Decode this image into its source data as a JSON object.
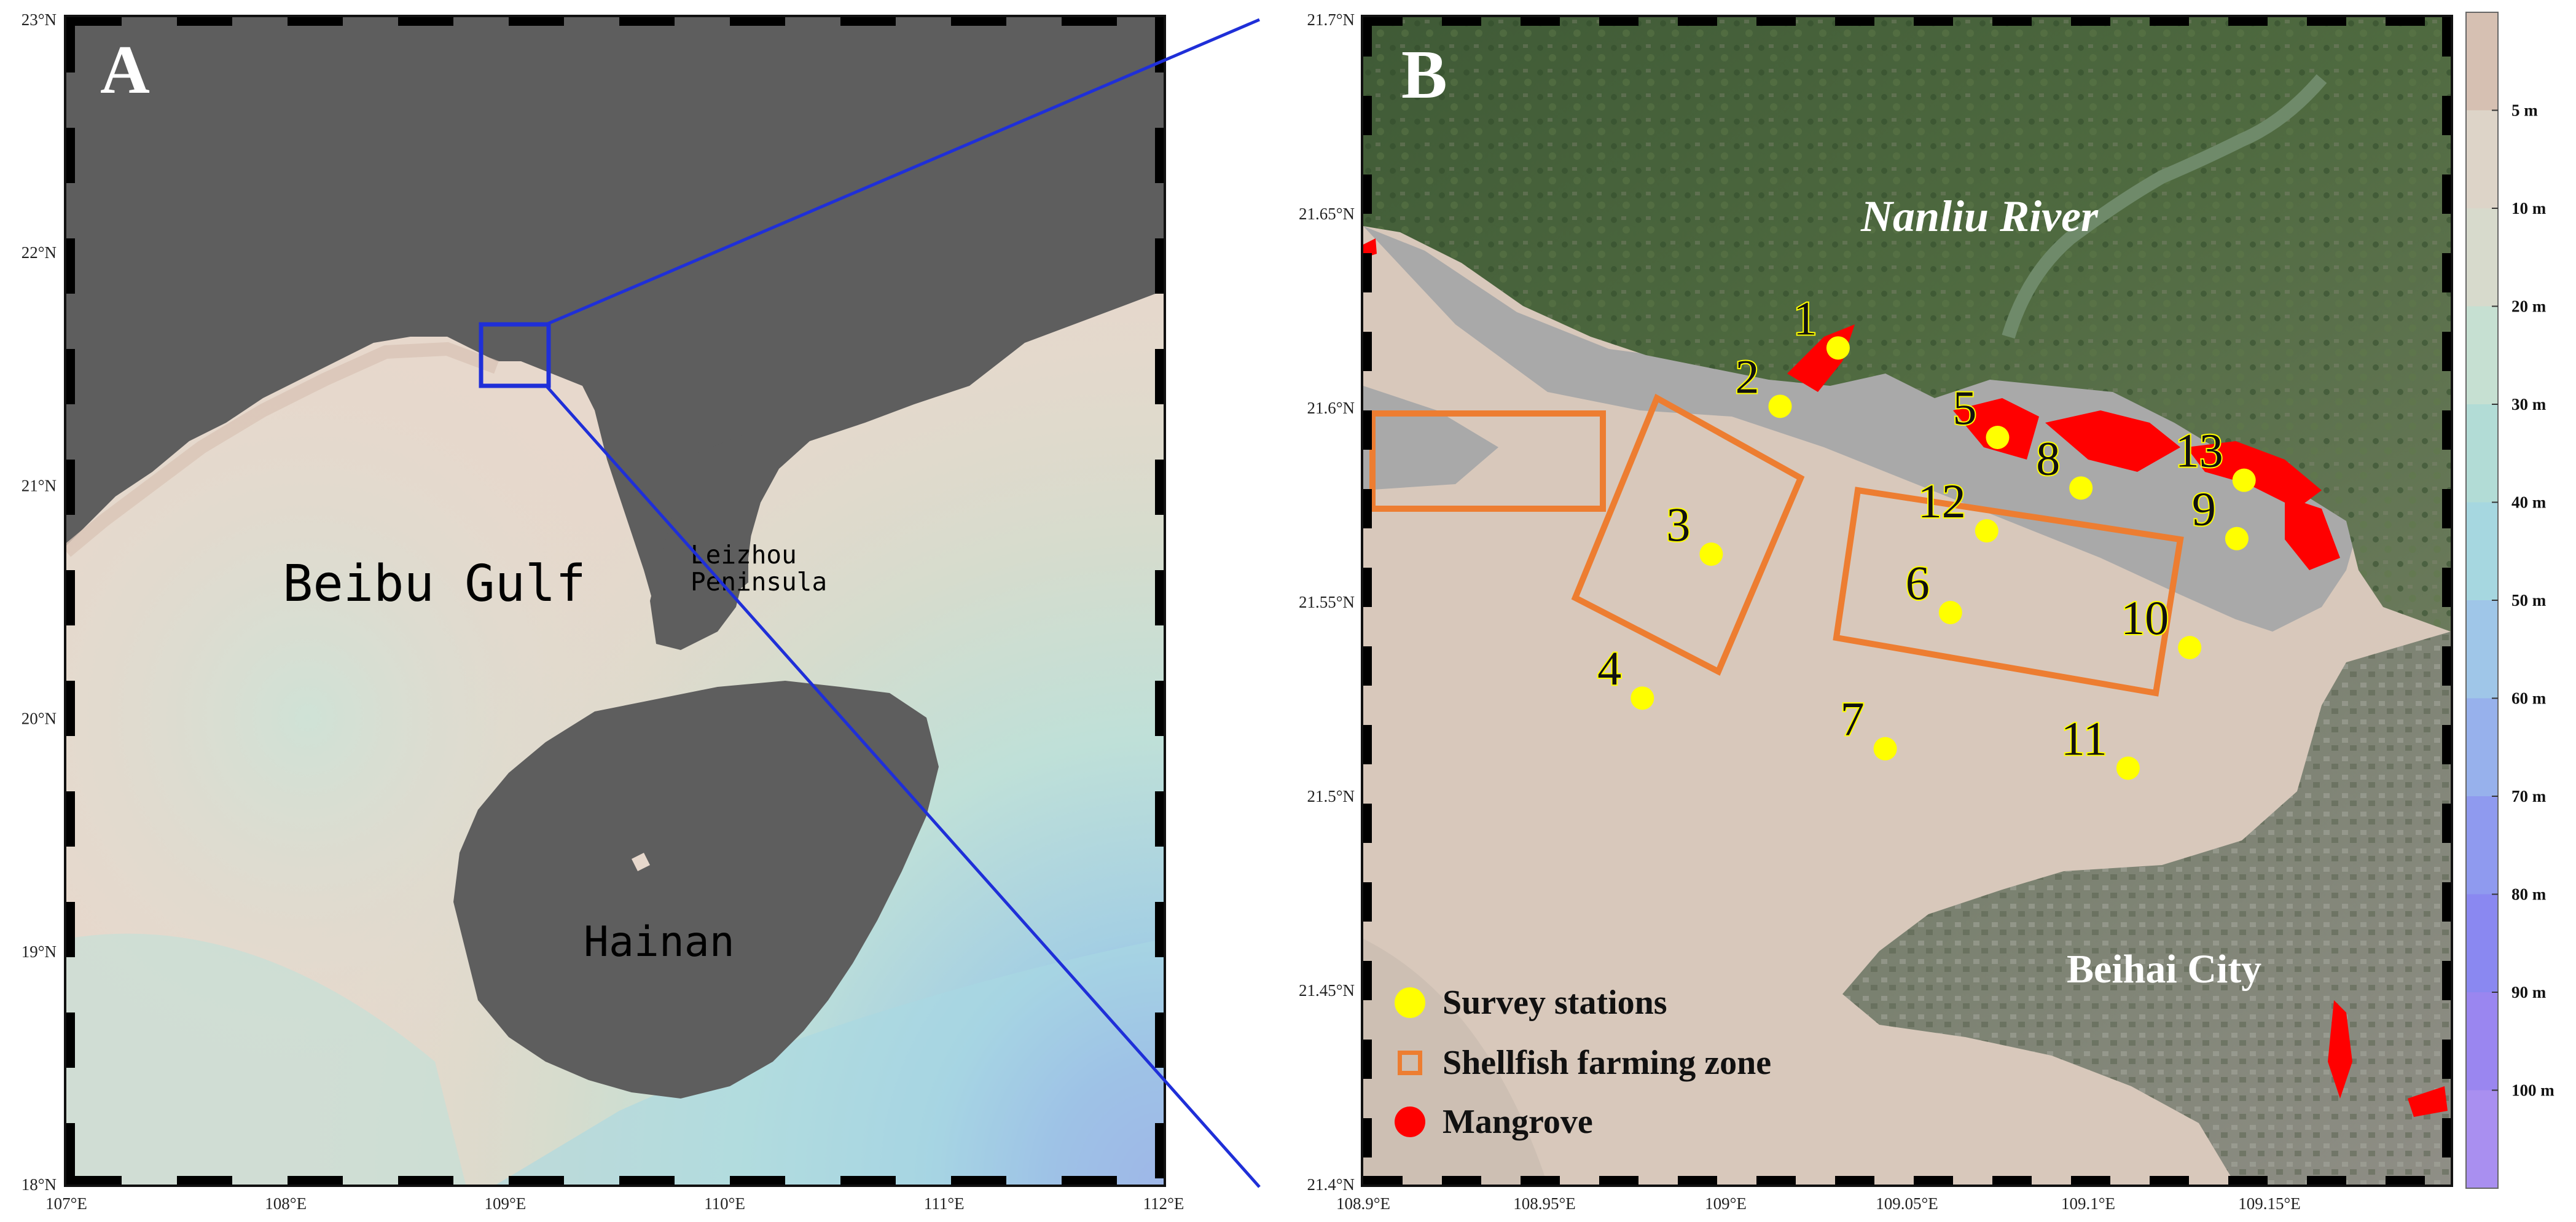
{
  "panel_a": {
    "letter": "A",
    "lat_labels": [
      "23°N",
      "22°N",
      "21°N",
      "20°N",
      "19°N",
      "18°N"
    ],
    "lon_labels": [
      "107°E",
      "108°E",
      "109°E",
      "110°E",
      "111°E",
      "112°E"
    ],
    "places": {
      "gulf": "Beibu Gulf",
      "peninsula_line1": "Leizhou",
      "peninsula_line2": "Peninsula",
      "island": "Hainan"
    }
  },
  "panel_b": {
    "letter": "B",
    "lat_labels": [
      "21.7°N",
      "21.65°N",
      "21.6°N",
      "21.55°N",
      "21.5°N",
      "21.45°N",
      "21.4°N"
    ],
    "lon_labels": [
      "108.9°E",
      "108.95°E",
      "109°E",
      "109.05°E",
      "109.1°E",
      "109.15°E"
    ],
    "places": {
      "river": "Nanliu River",
      "city": "Beihai City"
    },
    "stations": [
      {
        "id": "1",
        "lon": 109.031,
        "lat": 21.615
      },
      {
        "id": "2",
        "lon": 109.015,
        "lat": 21.6
      },
      {
        "id": "3",
        "lon": 108.996,
        "lat": 21.562
      },
      {
        "id": "4",
        "lon": 108.977,
        "lat": 21.525
      },
      {
        "id": "5",
        "lon": 109.075,
        "lat": 21.592
      },
      {
        "id": "6",
        "lon": 109.062,
        "lat": 21.547
      },
      {
        "id": "7",
        "lon": 109.044,
        "lat": 21.512
      },
      {
        "id": "8",
        "lon": 109.098,
        "lat": 21.579
      },
      {
        "id": "9",
        "lon": 109.141,
        "lat": 21.566
      },
      {
        "id": "10",
        "lon": 109.128,
        "lat": 21.538
      },
      {
        "id": "11",
        "lon": 109.111,
        "lat": 21.507
      },
      {
        "id": "12",
        "lon": 109.072,
        "lat": 21.568
      },
      {
        "id": "13",
        "lon": 109.143,
        "lat": 21.581
      }
    ],
    "legend": {
      "stations": "Survey stations",
      "farming": "Shellfish farming zone",
      "mangrove": "Mangrove"
    }
  },
  "colorbar": {
    "labels": [
      "5 m",
      "10 m",
      "20 m",
      "30 m",
      "40 m",
      "50 m",
      "60 m",
      "70 m",
      "80 m",
      "90 m",
      "100 m"
    ],
    "colors": [
      "#d6c0b2",
      "#ddd4c8",
      "#d7dacc",
      "#c6e0d2",
      "#b2dcd6",
      "#a6d7e0",
      "#9fc6e8",
      "#97b1ec",
      "#8f9aef",
      "#8a88f1",
      "#9a86f0",
      "#a98ff0"
    ]
  },
  "colors": {
    "land_a": "#5e5e5e",
    "shallow": "#e7d8cc",
    "tidal_flat": "#a9a9a9",
    "station": "#ffff00",
    "mangrove": "#ff0000",
    "farming_zone": "#ed7d31",
    "inset_box": "#1f2fd8"
  }
}
